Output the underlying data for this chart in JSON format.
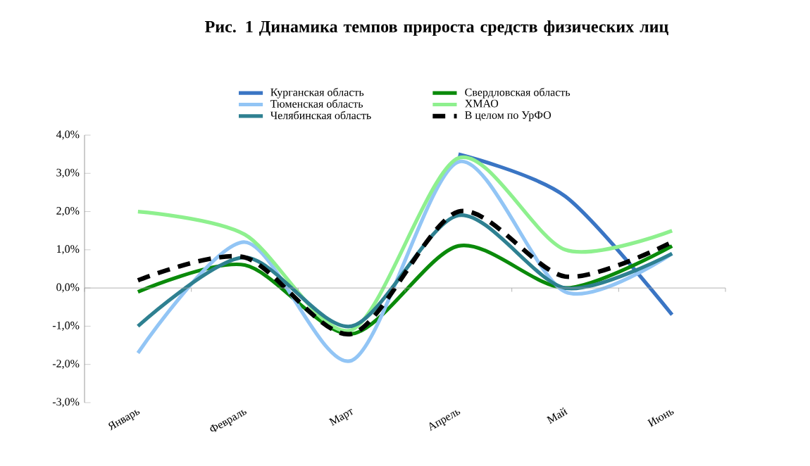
{
  "chart_data": {
    "type": "line",
    "title": "Рис. 1 Динамика темпов прироста средств физических лиц",
    "categories": [
      "Январь",
      "Февраль",
      "Март",
      "Апрель",
      "Май",
      "Июнь"
    ],
    "series": [
      {
        "name": "Курганская область",
        "color": "#3a75c4",
        "values": [
          null,
          null,
          null,
          3.5,
          2.4,
          -0.7
        ]
      },
      {
        "name": "Свердловская область",
        "color": "#0a8a0a",
        "values": [
          -0.1,
          0.6,
          -1.2,
          1.1,
          0.0,
          1.1
        ]
      },
      {
        "name": "Тюменская область",
        "color": "#92c5f5",
        "values": [
          -1.7,
          1.2,
          -1.9,
          3.3,
          -0.1,
          0.9
        ]
      },
      {
        "name": "ХМАО",
        "color": "#8ef08e",
        "values": [
          2.0,
          1.4,
          -1.1,
          3.4,
          1.0,
          1.5
        ]
      },
      {
        "name": "Челябинская область",
        "color": "#2e8091",
        "values": [
          -1.0,
          0.8,
          -1.0,
          1.9,
          0.0,
          0.9
        ]
      },
      {
        "name": "В целом по УрФО",
        "color": "#000000",
        "values": [
          0.2,
          0.8,
          -1.2,
          2.0,
          0.3,
          1.2
        ],
        "line_style": "dashed"
      }
    ],
    "ylim": [
      -3,
      4
    ],
    "yticks": [
      {
        "value": -3,
        "label": "-3,0%"
      },
      {
        "value": -2,
        "label": "-2,0%"
      },
      {
        "value": -1,
        "label": "-1,0%"
      },
      {
        "value": 0,
        "label": "0,0%"
      },
      {
        "value": 1,
        "label": "1,0%"
      },
      {
        "value": 2,
        "label": "2,0%"
      },
      {
        "value": 3,
        "label": "3,0%"
      },
      {
        "value": 4,
        "label": "4,0%"
      }
    ],
    "ref_lines": [
      {
        "axis": "y",
        "value": 0,
        "color": "#a0a0a0"
      }
    ],
    "grid": false,
    "legend": "top",
    "line_style": "solid"
  }
}
